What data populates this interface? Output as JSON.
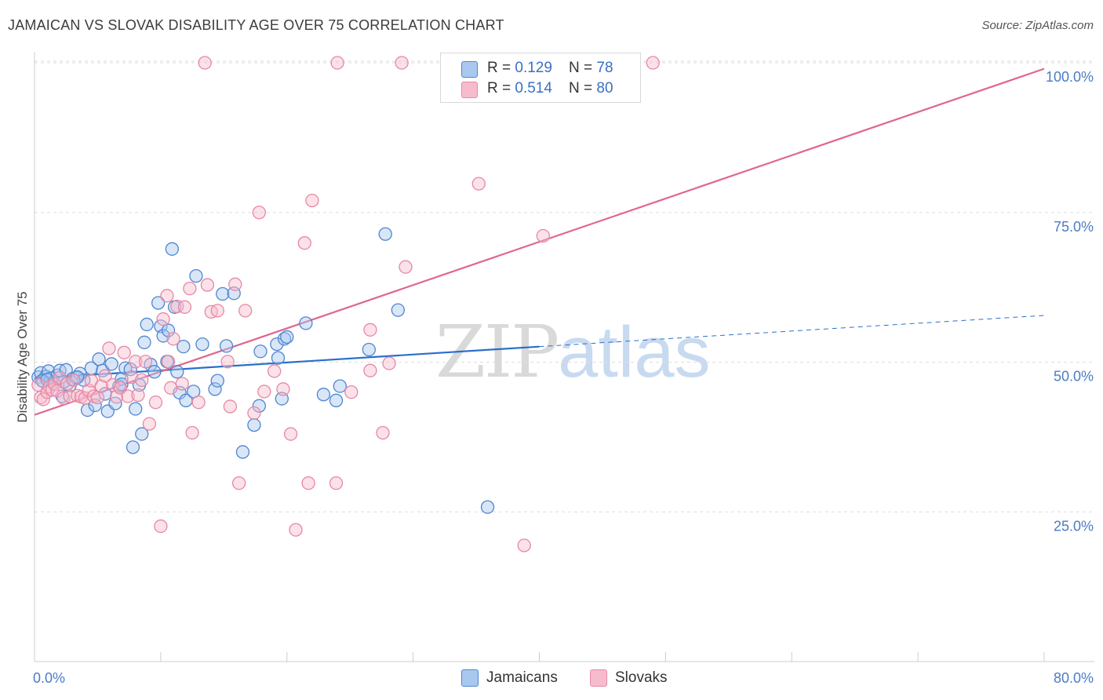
{
  "title": "JAMAICAN VS SLOVAK DISABILITY AGE OVER 75 CORRELATION CHART",
  "source": "Source: ZipAtlas.com",
  "watermark": {
    "zip": "ZIP",
    "atlas": "atlas"
  },
  "colors": {
    "blue_fill": "#a9c8ef",
    "blue_stroke": "#4f86cf",
    "blue_line": "#2a6fcc",
    "pink_fill": "#f6bccd",
    "pink_stroke": "#e688a6",
    "pink_line": "#e0668f",
    "grid": "#dddddd",
    "tick_text": "#4a7cc7"
  },
  "legend": {
    "rows": [
      {
        "r_label": "R = ",
        "r_value": "0.129",
        "n_label": "N = ",
        "n_value": "78",
        "series": "blue"
      },
      {
        "r_label": "R = ",
        "r_value": "0.514",
        "n_label": "N = ",
        "n_value": "80",
        "series": "pink"
      }
    ],
    "bottom": [
      {
        "label": "Jamaicans",
        "series": "blue"
      },
      {
        "label": "Slovaks",
        "series": "pink"
      }
    ]
  },
  "chart_data": {
    "type": "scatter",
    "title": "JAMAICAN VS SLOVAK DISABILITY AGE OVER 75 CORRELATION CHART",
    "xlabel": "",
    "ylabel": "Disability Age Over 75",
    "xlim": [
      0,
      80
    ],
    "ylim": [
      0,
      103
    ],
    "x_tick_labels": [
      {
        "value": 0,
        "label": "0.0%"
      },
      {
        "value": 80,
        "label": "80.0%"
      }
    ],
    "y_tick_labels": [
      {
        "value": 25,
        "label": "25.0%"
      },
      {
        "value": 50,
        "label": "50.0%"
      },
      {
        "value": 75,
        "label": "75.0%"
      },
      {
        "value": 100,
        "label": "100.0%"
      }
    ],
    "grid": true,
    "legend_position": "top-center",
    "series": [
      {
        "name": "Jamaicans",
        "color": "#4f86cf",
        "trend": {
          "x0": 0,
          "y0": 47.3,
          "x1": 40,
          "y1": 52.6,
          "dashed_to_x": 80,
          "dashed_to_y": 57.8
        },
        "points": [
          [
            0.3,
            47.5
          ],
          [
            0.5,
            48.2
          ],
          [
            0.7,
            46.8
          ],
          [
            0.9,
            47.6
          ],
          [
            1.1,
            48.5
          ],
          [
            1.3,
            47.3
          ],
          [
            1.5,
            46.5
          ],
          [
            1.8,
            47.8
          ],
          [
            2.0,
            48.6
          ],
          [
            2.2,
            44.3
          ],
          [
            2.5,
            48.7
          ],
          [
            2.8,
            46.1
          ],
          [
            3.0,
            47.2
          ],
          [
            3.3,
            47.4
          ],
          [
            3.6,
            48.1
          ],
          [
            3.9,
            47.0
          ],
          [
            4.2,
            42.0
          ],
          [
            4.5,
            49.0
          ],
          [
            4.8,
            42.8
          ],
          [
            5.1,
            50.5
          ],
          [
            5.4,
            48.6
          ],
          [
            5.6,
            44.7
          ],
          [
            5.8,
            41.8
          ],
          [
            6.1,
            49.7
          ],
          [
            6.4,
            43.1
          ],
          [
            6.7,
            46.0
          ],
          [
            6.9,
            47.2
          ],
          [
            7.2,
            49.0
          ],
          [
            7.6,
            48.8
          ],
          [
            7.8,
            35.8
          ],
          [
            8.0,
            42.2
          ],
          [
            8.3,
            46.2
          ],
          [
            8.5,
            38.0
          ],
          [
            8.7,
            53.3
          ],
          [
            8.9,
            56.3
          ],
          [
            9.2,
            49.6
          ],
          [
            9.5,
            48.4
          ],
          [
            9.8,
            59.9
          ],
          [
            10.0,
            56.0
          ],
          [
            10.2,
            54.4
          ],
          [
            10.5,
            50.1
          ],
          [
            10.6,
            55.3
          ],
          [
            10.9,
            68.9
          ],
          [
            11.1,
            59.2
          ],
          [
            11.3,
            48.4
          ],
          [
            11.5,
            44.9
          ],
          [
            11.8,
            52.6
          ],
          [
            12.0,
            43.6
          ],
          [
            12.6,
            45.1
          ],
          [
            12.8,
            64.4
          ],
          [
            13.3,
            53.0
          ],
          [
            14.3,
            45.5
          ],
          [
            14.5,
            46.9
          ],
          [
            14.9,
            61.4
          ],
          [
            15.2,
            52.7
          ],
          [
            15.8,
            61.5
          ],
          [
            16.5,
            35.0
          ],
          [
            17.4,
            39.5
          ],
          [
            17.8,
            42.7
          ],
          [
            17.9,
            51.8
          ],
          [
            19.2,
            53.0
          ],
          [
            19.3,
            50.7
          ],
          [
            19.6,
            43.9
          ],
          [
            19.8,
            53.9
          ],
          [
            20.0,
            54.2
          ],
          [
            21.5,
            56.5
          ],
          [
            22.9,
            44.6
          ],
          [
            23.9,
            43.6
          ],
          [
            24.2,
            46.0
          ],
          [
            26.5,
            52.1
          ],
          [
            27.8,
            71.4
          ],
          [
            28.8,
            58.7
          ],
          [
            35.9,
            25.8
          ],
          [
            0.6,
            46.9
          ],
          [
            1.0,
            47.1
          ],
          [
            2.3,
            46.7
          ],
          [
            3.4,
            47.5
          ],
          [
            6.9,
            46.3
          ]
        ]
      },
      {
        "name": "Slovaks",
        "color": "#e688a6",
        "trend": {
          "x0": 0,
          "y0": 41.2,
          "x1": 80,
          "y1": 99.0
        },
        "points": [
          [
            0.3,
            46.2
          ],
          [
            0.5,
            44.1
          ],
          [
            0.7,
            43.8
          ],
          [
            1.0,
            45.0
          ],
          [
            1.2,
            45.9
          ],
          [
            1.4,
            45.4
          ],
          [
            1.6,
            46.3
          ],
          [
            1.8,
            45.2
          ],
          [
            2.0,
            47.4
          ],
          [
            2.3,
            44.0
          ],
          [
            2.6,
            46.4
          ],
          [
            2.8,
            44.3
          ],
          [
            3.1,
            47.0
          ],
          [
            3.4,
            44.4
          ],
          [
            3.7,
            44.2
          ],
          [
            4.0,
            44.0
          ],
          [
            4.3,
            45.3
          ],
          [
            4.5,
            46.9
          ],
          [
            4.7,
            44.3
          ],
          [
            5.0,
            44.1
          ],
          [
            5.3,
            46.0
          ],
          [
            5.6,
            47.7
          ],
          [
            5.9,
            52.3
          ],
          [
            6.2,
            46.2
          ],
          [
            6.5,
            44.2
          ],
          [
            6.8,
            45.7
          ],
          [
            7.1,
            51.6
          ],
          [
            7.4,
            44.3
          ],
          [
            7.7,
            47.5
          ],
          [
            8.0,
            50.1
          ],
          [
            8.2,
            44.5
          ],
          [
            8.5,
            47.0
          ],
          [
            8.8,
            50.1
          ],
          [
            9.1,
            39.7
          ],
          [
            9.6,
            43.3
          ],
          [
            10.0,
            22.6
          ],
          [
            10.2,
            57.2
          ],
          [
            10.5,
            61.1
          ],
          [
            10.6,
            50.1
          ],
          [
            10.8,
            45.7
          ],
          [
            11.0,
            53.9
          ],
          [
            11.3,
            59.3
          ],
          [
            11.7,
            46.4
          ],
          [
            11.9,
            59.2
          ],
          [
            12.3,
            62.3
          ],
          [
            12.5,
            38.2
          ],
          [
            13.0,
            43.3
          ],
          [
            13.5,
            100.0
          ],
          [
            13.7,
            62.9
          ],
          [
            14.0,
            58.4
          ],
          [
            14.5,
            58.6
          ],
          [
            15.3,
            50.1
          ],
          [
            15.5,
            42.6
          ],
          [
            15.9,
            63.0
          ],
          [
            16.2,
            29.8
          ],
          [
            16.7,
            58.6
          ],
          [
            17.4,
            41.5
          ],
          [
            17.8,
            75.0
          ],
          [
            18.2,
            45.1
          ],
          [
            19.0,
            48.5
          ],
          [
            19.7,
            45.5
          ],
          [
            20.3,
            38.0
          ],
          [
            20.7,
            22.0
          ],
          [
            21.4,
            69.9
          ],
          [
            21.7,
            29.8
          ],
          [
            22.0,
            77.0
          ],
          [
            23.9,
            29.8
          ],
          [
            24.0,
            100.0
          ],
          [
            25.1,
            45.0
          ],
          [
            26.6,
            48.6
          ],
          [
            26.6,
            55.4
          ],
          [
            27.6,
            38.2
          ],
          [
            28.1,
            49.8
          ],
          [
            29.1,
            100.0
          ],
          [
            29.4,
            65.9
          ],
          [
            35.2,
            79.8
          ],
          [
            38.8,
            19.4
          ],
          [
            40.3,
            71.1
          ],
          [
            42.4,
            100.0
          ],
          [
            49.0,
            100.0
          ]
        ]
      }
    ]
  }
}
